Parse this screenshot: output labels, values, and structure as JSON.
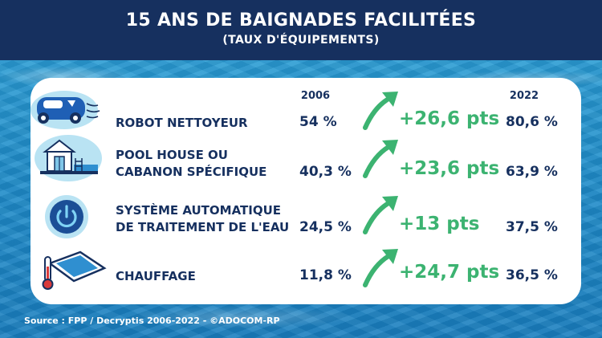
{
  "title": "15 ANS DE BAIGNADES FACILITÉES",
  "subtitle": "(TAUX D'ÉQUIPEMENTS)",
  "source": "Source : FPP / Decryptis 2006-2022 - ©ADOCOM-RP",
  "colors": {
    "header": "#16305f",
    "text": "#16305f",
    "delta": "#3cb371",
    "icon_bg": "#b9e3f3"
  },
  "chart_data": {
    "type": "table",
    "title": "15 ANS DE BAIGNADES FACILITÉES",
    "subtitle": "(TAUX D'ÉQUIPEMENTS)",
    "columns": [
      "2006",
      "2022"
    ],
    "rows": [
      {
        "label_lines": [
          "ROBOT NETTOYEUR"
        ],
        "icon": "pool-robot-icon",
        "v2006": 54,
        "v2006_label": "54 %",
        "v2022": 80.6,
        "v2022_label": "80,6 %",
        "delta": 26.6,
        "delta_label": "+26,6 pts"
      },
      {
        "label_lines": [
          "POOL HOUSE OU",
          "CABANON SPÉCIFIQUE"
        ],
        "icon": "pool-house-icon",
        "v2006": 40.3,
        "v2006_label": "40,3 %",
        "v2022": 63.9,
        "v2022_label": "63,9 %",
        "delta": 23.6,
        "delta_label": "+23,6 pts"
      },
      {
        "label_lines": [
          "SYSTÈME AUTOMATIQUE",
          "DE TRAITEMENT DE L'EAU"
        ],
        "icon": "power-button-icon",
        "v2006": 24.5,
        "v2006_label": "24,5 %",
        "v2022": 37.5,
        "v2022_label": "37,5 %",
        "delta": 13,
        "delta_label": "+13 pts"
      },
      {
        "label_lines": [
          "CHAUFFAGE"
        ],
        "icon": "pool-thermometer-icon",
        "v2006": 11.8,
        "v2006_label": "11,8 %",
        "v2022": 36.5,
        "v2022_label": "36,5 %",
        "delta": 24.7,
        "delta_label": "+24,7 pts"
      }
    ]
  }
}
